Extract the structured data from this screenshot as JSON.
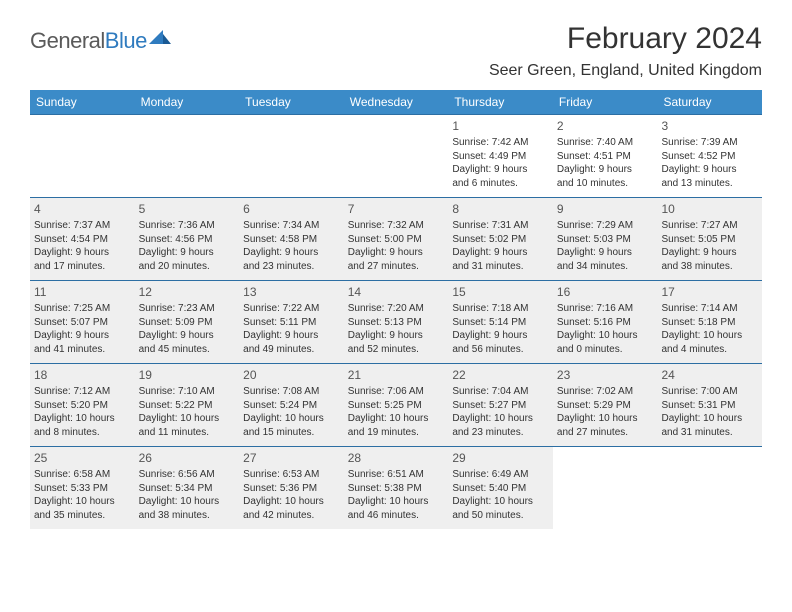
{
  "logo": {
    "word1": "General",
    "word2": "Blue"
  },
  "title": "February 2024",
  "location": "Seer Green, England, United Kingdom",
  "colors": {
    "header_bg": "#3b8bc8",
    "header_text": "#ffffff",
    "week_border": "#2c6ea3",
    "shaded_bg": "#efefef",
    "text": "#333333",
    "daynum": "#555555"
  },
  "day_names": [
    "Sunday",
    "Monday",
    "Tuesday",
    "Wednesday",
    "Thursday",
    "Friday",
    "Saturday"
  ],
  "weeks": [
    [
      {
        "blank": true,
        "shaded": false
      },
      {
        "blank": true,
        "shaded": false
      },
      {
        "blank": true,
        "shaded": false
      },
      {
        "blank": true,
        "shaded": false
      },
      {
        "day": "1",
        "sunrise": "Sunrise: 7:42 AM",
        "sunset": "Sunset: 4:49 PM",
        "daylight1": "Daylight: 9 hours",
        "daylight2": "and 6 minutes.",
        "shaded": false
      },
      {
        "day": "2",
        "sunrise": "Sunrise: 7:40 AM",
        "sunset": "Sunset: 4:51 PM",
        "daylight1": "Daylight: 9 hours",
        "daylight2": "and 10 minutes.",
        "shaded": false
      },
      {
        "day": "3",
        "sunrise": "Sunrise: 7:39 AM",
        "sunset": "Sunset: 4:52 PM",
        "daylight1": "Daylight: 9 hours",
        "daylight2": "and 13 minutes.",
        "shaded": false
      }
    ],
    [
      {
        "day": "4",
        "sunrise": "Sunrise: 7:37 AM",
        "sunset": "Sunset: 4:54 PM",
        "daylight1": "Daylight: 9 hours",
        "daylight2": "and 17 minutes.",
        "shaded": true
      },
      {
        "day": "5",
        "sunrise": "Sunrise: 7:36 AM",
        "sunset": "Sunset: 4:56 PM",
        "daylight1": "Daylight: 9 hours",
        "daylight2": "and 20 minutes.",
        "shaded": true
      },
      {
        "day": "6",
        "sunrise": "Sunrise: 7:34 AM",
        "sunset": "Sunset: 4:58 PM",
        "daylight1": "Daylight: 9 hours",
        "daylight2": "and 23 minutes.",
        "shaded": true
      },
      {
        "day": "7",
        "sunrise": "Sunrise: 7:32 AM",
        "sunset": "Sunset: 5:00 PM",
        "daylight1": "Daylight: 9 hours",
        "daylight2": "and 27 minutes.",
        "shaded": true
      },
      {
        "day": "8",
        "sunrise": "Sunrise: 7:31 AM",
        "sunset": "Sunset: 5:02 PM",
        "daylight1": "Daylight: 9 hours",
        "daylight2": "and 31 minutes.",
        "shaded": true
      },
      {
        "day": "9",
        "sunrise": "Sunrise: 7:29 AM",
        "sunset": "Sunset: 5:03 PM",
        "daylight1": "Daylight: 9 hours",
        "daylight2": "and 34 minutes.",
        "shaded": true
      },
      {
        "day": "10",
        "sunrise": "Sunrise: 7:27 AM",
        "sunset": "Sunset: 5:05 PM",
        "daylight1": "Daylight: 9 hours",
        "daylight2": "and 38 minutes.",
        "shaded": true
      }
    ],
    [
      {
        "day": "11",
        "sunrise": "Sunrise: 7:25 AM",
        "sunset": "Sunset: 5:07 PM",
        "daylight1": "Daylight: 9 hours",
        "daylight2": "and 41 minutes.",
        "shaded": true
      },
      {
        "day": "12",
        "sunrise": "Sunrise: 7:23 AM",
        "sunset": "Sunset: 5:09 PM",
        "daylight1": "Daylight: 9 hours",
        "daylight2": "and 45 minutes.",
        "shaded": true
      },
      {
        "day": "13",
        "sunrise": "Sunrise: 7:22 AM",
        "sunset": "Sunset: 5:11 PM",
        "daylight1": "Daylight: 9 hours",
        "daylight2": "and 49 minutes.",
        "shaded": true
      },
      {
        "day": "14",
        "sunrise": "Sunrise: 7:20 AM",
        "sunset": "Sunset: 5:13 PM",
        "daylight1": "Daylight: 9 hours",
        "daylight2": "and 52 minutes.",
        "shaded": true
      },
      {
        "day": "15",
        "sunrise": "Sunrise: 7:18 AM",
        "sunset": "Sunset: 5:14 PM",
        "daylight1": "Daylight: 9 hours",
        "daylight2": "and 56 minutes.",
        "shaded": true
      },
      {
        "day": "16",
        "sunrise": "Sunrise: 7:16 AM",
        "sunset": "Sunset: 5:16 PM",
        "daylight1": "Daylight: 10 hours",
        "daylight2": "and 0 minutes.",
        "shaded": true
      },
      {
        "day": "17",
        "sunrise": "Sunrise: 7:14 AM",
        "sunset": "Sunset: 5:18 PM",
        "daylight1": "Daylight: 10 hours",
        "daylight2": "and 4 minutes.",
        "shaded": true
      }
    ],
    [
      {
        "day": "18",
        "sunrise": "Sunrise: 7:12 AM",
        "sunset": "Sunset: 5:20 PM",
        "daylight1": "Daylight: 10 hours",
        "daylight2": "and 8 minutes.",
        "shaded": true
      },
      {
        "day": "19",
        "sunrise": "Sunrise: 7:10 AM",
        "sunset": "Sunset: 5:22 PM",
        "daylight1": "Daylight: 10 hours",
        "daylight2": "and 11 minutes.",
        "shaded": true
      },
      {
        "day": "20",
        "sunrise": "Sunrise: 7:08 AM",
        "sunset": "Sunset: 5:24 PM",
        "daylight1": "Daylight: 10 hours",
        "daylight2": "and 15 minutes.",
        "shaded": true
      },
      {
        "day": "21",
        "sunrise": "Sunrise: 7:06 AM",
        "sunset": "Sunset: 5:25 PM",
        "daylight1": "Daylight: 10 hours",
        "daylight2": "and 19 minutes.",
        "shaded": true
      },
      {
        "day": "22",
        "sunrise": "Sunrise: 7:04 AM",
        "sunset": "Sunset: 5:27 PM",
        "daylight1": "Daylight: 10 hours",
        "daylight2": "and 23 minutes.",
        "shaded": true
      },
      {
        "day": "23",
        "sunrise": "Sunrise: 7:02 AM",
        "sunset": "Sunset: 5:29 PM",
        "daylight1": "Daylight: 10 hours",
        "daylight2": "and 27 minutes.",
        "shaded": true
      },
      {
        "day": "24",
        "sunrise": "Sunrise: 7:00 AM",
        "sunset": "Sunset: 5:31 PM",
        "daylight1": "Daylight: 10 hours",
        "daylight2": "and 31 minutes.",
        "shaded": true
      }
    ],
    [
      {
        "day": "25",
        "sunrise": "Sunrise: 6:58 AM",
        "sunset": "Sunset: 5:33 PM",
        "daylight1": "Daylight: 10 hours",
        "daylight2": "and 35 minutes.",
        "shaded": true
      },
      {
        "day": "26",
        "sunrise": "Sunrise: 6:56 AM",
        "sunset": "Sunset: 5:34 PM",
        "daylight1": "Daylight: 10 hours",
        "daylight2": "and 38 minutes.",
        "shaded": true
      },
      {
        "day": "27",
        "sunrise": "Sunrise: 6:53 AM",
        "sunset": "Sunset: 5:36 PM",
        "daylight1": "Daylight: 10 hours",
        "daylight2": "and 42 minutes.",
        "shaded": true
      },
      {
        "day": "28",
        "sunrise": "Sunrise: 6:51 AM",
        "sunset": "Sunset: 5:38 PM",
        "daylight1": "Daylight: 10 hours",
        "daylight2": "and 46 minutes.",
        "shaded": true
      },
      {
        "day": "29",
        "sunrise": "Sunrise: 6:49 AM",
        "sunset": "Sunset: 5:40 PM",
        "daylight1": "Daylight: 10 hours",
        "daylight2": "and 50 minutes.",
        "shaded": true
      },
      {
        "blank": true,
        "shaded": false
      },
      {
        "blank": true,
        "shaded": false
      }
    ]
  ]
}
